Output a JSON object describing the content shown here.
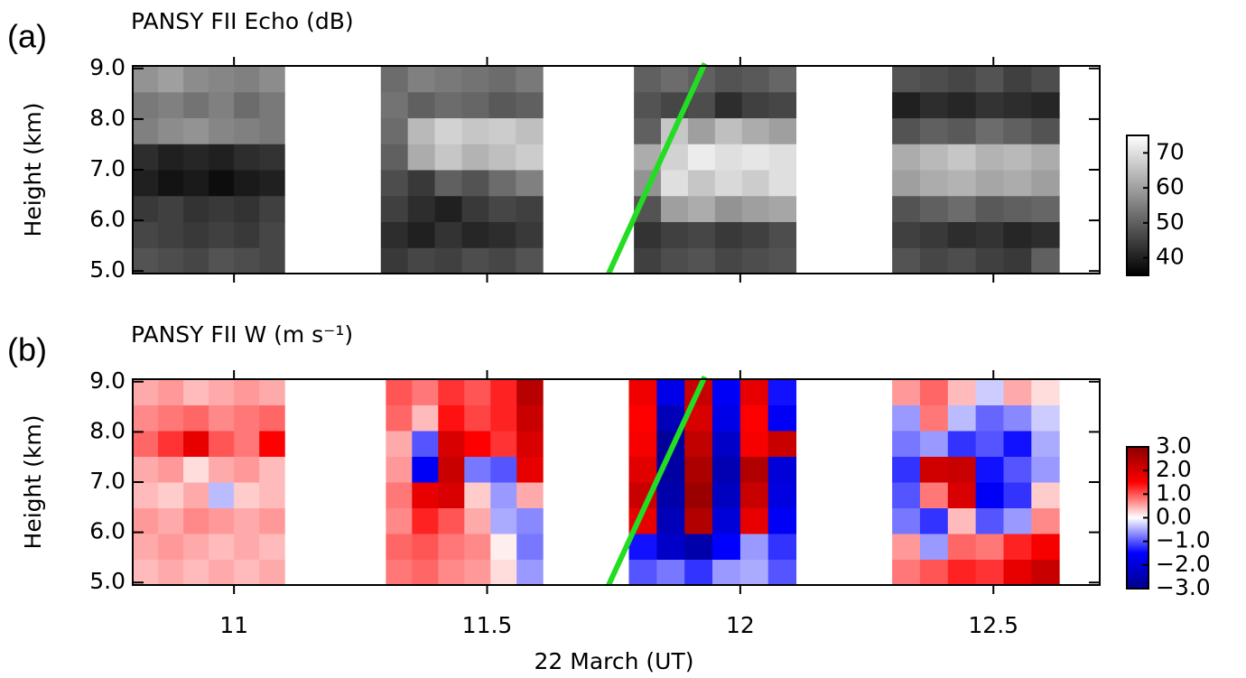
{
  "chart_data": [
    {
      "type": "heatmap",
      "panel_label": "(a)",
      "title": "PANSY FII Echo (dB)",
      "ylabel": "Height (km)",
      "xlim": [
        10.8,
        12.71
      ],
      "ylim": [
        4.95,
        9.05
      ],
      "yticks": [
        {
          "value": 5,
          "label": "5.0"
        },
        {
          "value": 6,
          "label": "6.0"
        },
        {
          "value": 7,
          "label": "7.0"
        },
        {
          "value": 8,
          "label": "8.0"
        },
        {
          "value": 9,
          "label": "9.0"
        }
      ],
      "colorbar": {
        "lim": [
          35,
          75
        ],
        "ticks": [
          40,
          50,
          60,
          70
        ],
        "colors": [
          "#000000",
          "#ffffff"
        ]
      },
      "line": {
        "x": [
          11.74,
          11.93
        ],
        "y": [
          4.95,
          9.1
        ],
        "color": "#22dd22"
      },
      "segments": [
        {
          "x": [
            10.8,
            11.1
          ],
          "z": [
            [
              48,
              47,
              46,
              48,
              47,
              46
            ],
            [
              46,
              45,
              44,
              45,
              44,
              46
            ],
            [
              44,
              45,
              43,
              44,
              43,
              45
            ],
            [
              40,
              38,
              39,
              37,
              39,
              40
            ],
            [
              42,
              40,
              41,
              40,
              42,
              43
            ],
            [
              55,
              57,
              58,
              56,
              55,
              54
            ],
            [
              54,
              55,
              53,
              55,
              52,
              54
            ],
            [
              58,
              60,
              57,
              56,
              55,
              57
            ]
          ]
        },
        {
          "x": [
            11.29,
            11.61
          ],
          "z": [
            [
              44,
              46,
              45,
              47,
              46,
              48
            ],
            [
              42,
              40,
              43,
              41,
              42,
              44
            ],
            [
              45,
              42,
              40,
              44,
              46,
              45
            ],
            [
              47,
              44,
              50,
              48,
              52,
              55
            ],
            [
              50,
              62,
              66,
              63,
              65,
              67
            ],
            [
              52,
              64,
              68,
              66,
              67,
              65
            ],
            [
              53,
              50,
              52,
              51,
              49,
              50
            ],
            [
              52,
              55,
              54,
              53,
              52,
              54
            ]
          ]
        },
        {
          "x": [
            11.79,
            12.11
          ],
          "z": [
            [
              45,
              47,
              48,
              46,
              47,
              48
            ],
            [
              43,
              45,
              46,
              44,
              45,
              47
            ],
            [
              48,
              60,
              62,
              58,
              60,
              61
            ],
            [
              58,
              70,
              66,
              69,
              67,
              70
            ],
            [
              62,
              68,
              72,
              70,
              71,
              70
            ],
            [
              50,
              66,
              60,
              65,
              62,
              60
            ],
            [
              48,
              46,
              47,
              42,
              45,
              46
            ],
            [
              50,
              52,
              50,
              48,
              49,
              51
            ]
          ]
        },
        {
          "x": [
            12.3,
            12.63
          ],
          "z": [
            [
              48,
              46,
              47,
              45,
              44,
              50
            ],
            [
              45,
              44,
              42,
              43,
              41,
              42
            ],
            [
              48,
              50,
              52,
              49,
              50,
              51
            ],
            [
              60,
              62,
              63,
              61,
              62,
              60
            ],
            [
              62,
              64,
              66,
              63,
              64,
              62
            ],
            [
              48,
              50,
              49,
              52,
              50,
              48
            ],
            [
              40,
              42,
              41,
              43,
              42,
              41
            ],
            [
              48,
              47,
              46,
              48,
              45,
              47
            ]
          ]
        }
      ]
    },
    {
      "type": "heatmap",
      "panel_label": "(b)",
      "title": "PANSY FII W (m s⁻¹)",
      "ylabel": "Height (km)",
      "xlabel": "22 March (UT)",
      "xlim": [
        10.8,
        12.71
      ],
      "ylim": [
        4.95,
        9.05
      ],
      "xticks": [
        11,
        11.5,
        12,
        12.5
      ],
      "yticks": [
        {
          "value": 5,
          "label": "5.0"
        },
        {
          "value": 6,
          "label": "6.0"
        },
        {
          "value": 7,
          "label": "7.0"
        },
        {
          "value": 8,
          "label": "8.0"
        },
        {
          "value": 9,
          "label": "9.0"
        }
      ],
      "colorbar": {
        "lim": [
          -3,
          3
        ],
        "ticks": [
          {
            "value": 3,
            "label": "3.0"
          },
          {
            "value": 2,
            "label": "2.0"
          },
          {
            "value": 1,
            "label": "1.0"
          },
          {
            "value": 0,
            "label": "0.0"
          },
          {
            "value": -1,
            "label": "−1.0"
          },
          {
            "value": -2,
            "label": "−2.0"
          },
          {
            "value": -3,
            "label": "−3.0"
          }
        ],
        "colors": [
          "#00008b",
          "#0000ff",
          "#ffffff",
          "#ff0000",
          "#8b0000"
        ]
      },
      "line": {
        "x": [
          11.74,
          11.93
        ],
        "y": [
          4.95,
          9.1
        ],
        "color": "#22dd22"
      },
      "segments": [
        {
          "x": [
            10.8,
            11.1
          ],
          "z": [
            [
              0.4,
              0.5,
              0.4,
              0.5,
              0.4,
              0.5
            ],
            [
              0.5,
              0.6,
              0.5,
              0.4,
              0.5,
              0.4
            ],
            [
              0.6,
              0.5,
              0.7,
              0.6,
              0.5,
              0.6
            ],
            [
              0.4,
              0.3,
              0.5,
              -0.4,
              0.3,
              0.4
            ],
            [
              0.5,
              0.6,
              0.2,
              0.5,
              0.6,
              0.4
            ],
            [
              0.9,
              1.2,
              1.8,
              1.0,
              0.8,
              1.5
            ],
            [
              0.7,
              0.8,
              0.9,
              0.7,
              0.8,
              0.9
            ],
            [
              0.5,
              0.6,
              0.4,
              0.5,
              0.6,
              0.5
            ]
          ]
        },
        {
          "x": [
            11.3,
            11.61
          ],
          "z": [
            [
              0.8,
              0.9,
              0.7,
              0.6,
              0.2,
              -0.6
            ],
            [
              0.9,
              1.0,
              0.8,
              0.7,
              0.1,
              -0.8
            ],
            [
              0.7,
              1.3,
              1.0,
              0.5,
              -0.5,
              -0.7
            ],
            [
              0.8,
              1.8,
              2.0,
              0.3,
              -0.6,
              0.5
            ],
            [
              0.6,
              -1.6,
              2.2,
              -0.8,
              -1.0,
              1.8
            ],
            [
              0.5,
              -1.0,
              2.0,
              1.5,
              1.2,
              2.0
            ],
            [
              0.9,
              0.4,
              1.4,
              1.1,
              1.3,
              2.2
            ],
            [
              1.0,
              0.8,
              1.2,
              1.0,
              1.3,
              2.4
            ]
          ]
        },
        {
          "x": [
            11.78,
            12.11
          ],
          "z": [
            [
              -1.0,
              -0.8,
              -1.2,
              -0.6,
              -0.5,
              -1.0
            ],
            [
              -1.4,
              -2.2,
              -2.6,
              -1.5,
              -0.6,
              -1.2
            ],
            [
              1.8,
              -2.4,
              2.5,
              -2.0,
              1.8,
              -1.6
            ],
            [
              2.2,
              -2.6,
              2.8,
              -2.3,
              2.2,
              -1.9
            ],
            [
              1.9,
              -2.7,
              2.6,
              -2.5,
              2.5,
              -2.0
            ],
            [
              1.6,
              -2.8,
              2.3,
              -2.2,
              1.6,
              2.2
            ],
            [
              1.5,
              -2.4,
              2.0,
              -1.8,
              1.5,
              -1.6
            ],
            [
              1.7,
              -1.8,
              2.2,
              -1.6,
              1.8,
              -1.4
            ]
          ]
        },
        {
          "x": [
            12.3,
            12.63
          ],
          "z": [
            [
              0.8,
              1.0,
              1.3,
              1.2,
              1.8,
              2.2
            ],
            [
              0.6,
              -0.6,
              0.9,
              0.8,
              1.3,
              1.6
            ],
            [
              -0.8,
              -1.2,
              0.4,
              -1.0,
              -0.6,
              0.7
            ],
            [
              -1.0,
              0.8,
              2.0,
              -1.6,
              -1.2,
              0.3
            ],
            [
              -1.2,
              2.1,
              2.2,
              -1.4,
              -1.0,
              -0.6
            ],
            [
              -0.8,
              -0.6,
              -1.2,
              -1.0,
              -1.4,
              -0.5
            ],
            [
              -0.6,
              0.8,
              -0.4,
              -0.9,
              -0.7,
              -0.3
            ],
            [
              0.6,
              0.9,
              0.4,
              -0.3,
              0.5,
              0.2
            ]
          ]
        }
      ]
    }
  ]
}
